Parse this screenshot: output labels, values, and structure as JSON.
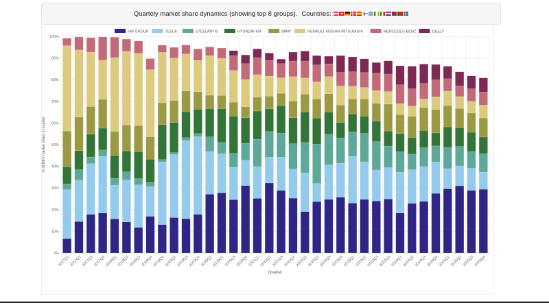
{
  "header": {
    "title": "Quartely market share dynamics (showing top 8 groups).",
    "countries_label": "Countries:",
    "country_flags": [
      "AT",
      "CH",
      "DE",
      "DK",
      "ES",
      "FI",
      "GB",
      "IE",
      "IT",
      "NL",
      "NO",
      "PT",
      "SE"
    ]
  },
  "chart_data": {
    "type": "bar",
    "stacked": true,
    "xlabel": "Quarter",
    "ylabel": "% of BEV market share in quarter",
    "ylim": [
      0,
      100
    ],
    "yticks": [
      "0%",
      "10%",
      "20%",
      "30%",
      "40%",
      "50%",
      "60%",
      "70%",
      "80%",
      "90%",
      "100%"
    ],
    "grid": true,
    "legend_position": "top",
    "categories": [
      "2017Q1",
      "2017Q2",
      "2017Q3",
      "2017Q4",
      "2018Q1",
      "2018Q2",
      "2018Q3",
      "2018Q4",
      "2019Q1",
      "2019Q2",
      "2019Q3",
      "2019Q4",
      "2020Q1",
      "2020Q2",
      "2020Q3",
      "2020Q4",
      "2021Q1",
      "2021Q2",
      "2021Q3",
      "2021Q4",
      "2022Q1",
      "2022Q2",
      "2022Q3",
      "2022Q4",
      "2023Q1",
      "2023Q2",
      "2023Q3",
      "2023Q4",
      "2024Q1",
      "2024Q2",
      "2024Q3",
      "2024Q4",
      "2025Q1",
      "2025Q2",
      "2025Q3",
      "2025Q4"
    ],
    "series": [
      {
        "name": "VW GROUP",
        "color": "#2e2585",
        "values": [
          6.6,
          14.5,
          17.8,
          18.4,
          15.7,
          14.3,
          11.8,
          16.9,
          13.1,
          16.3,
          15.8,
          17.8,
          27.1,
          27.7,
          24.6,
          31.1,
          25.2,
          32.3,
          28.9,
          25.3,
          19.1,
          23.7,
          24.7,
          25.7,
          23.0,
          24.7,
          24.0,
          24.9,
          18.4,
          22.9,
          23.8,
          27.5,
          29.6,
          31.0,
          28.9,
          29.4
        ]
      },
      {
        "name": "TESLA",
        "color": "#94caec",
        "values": [
          22.6,
          19.1,
          23.4,
          26.2,
          15.6,
          19.4,
          19.6,
          13.7,
          28.9,
          29.1,
          36.1,
          35.9,
          19.7,
          18.1,
          14.9,
          11.7,
          14.7,
          11.9,
          15.3,
          13.4,
          17.8,
          8.4,
          16.0,
          15.7,
          21.6,
          17.4,
          14.3,
          14.5,
          18.9,
          15.5,
          16.1,
          14.5,
          9.3,
          9.2,
          10.2,
          7.9
        ]
      },
      {
        "name": "STELLANTIS",
        "color": "#5da899",
        "values": [
          2.7,
          4.8,
          3.1,
          2.9,
          3.1,
          3.7,
          2.9,
          1.9,
          1.1,
          0.9,
          1.3,
          1.4,
          6.8,
          5.2,
          6.5,
          7.8,
          12.6,
          11.9,
          11.1,
          11.7,
          14.1,
          18.1,
          14.1,
          11.7,
          11.2,
          13.1,
          13.1,
          9.9,
          9.4,
          7.2,
          8.7,
          7.4,
          9.8,
          9.0,
          7.7,
          8.5
        ]
      },
      {
        "name": "HYUNDAI-KIA",
        "color": "#337538",
        "values": [
          7.8,
          8.8,
          10.5,
          10.1,
          10.6,
          9.7,
          12.4,
          10.8,
          16.1,
          13.9,
          12.0,
          11.2,
          13.0,
          15.6,
          17.2,
          11.8,
          13.0,
          10.4,
          12.7,
          12.0,
          14.1,
          12.1,
          10.2,
          7.1,
          8.4,
          7.9,
          9.4,
          7.0,
          8.4,
          7.7,
          7.9,
          6.0,
          9.5,
          8.6,
          8.9,
          7.7
        ]
      },
      {
        "name": "BMW",
        "color": "#9b9a42",
        "values": [
          16.6,
          15.5,
          12.8,
          13.3,
          11.1,
          11.9,
          12.1,
          10.3,
          10.1,
          10.2,
          9.6,
          8.1,
          6.2,
          6.1,
          6.4,
          5.1,
          6.4,
          5.9,
          5.7,
          7.7,
          8.2,
          8.8,
          8.5,
          8.1,
          6.9,
          8.0,
          8.3,
          12.4,
          8.7,
          9.8,
          10.6,
          10.8,
          9.8,
          8.9,
          8.9,
          8.8
        ]
      },
      {
        "name": "RENAULT-NISSAN-MITSUBISHI",
        "color": "#dccb7e",
        "values": [
          39.4,
          31.0,
          25.1,
          18.1,
          34.1,
          34.1,
          33.4,
          31.0,
          23.3,
          19.6,
          17.1,
          14.5,
          18.3,
          17.1,
          14.7,
          12.6,
          10.4,
          9.2,
          7.2,
          11.3,
          7.5,
          7.9,
          7.9,
          8.8,
          5.9,
          5.3,
          5.9,
          5.8,
          5.1,
          4.7,
          4.0,
          5.9,
          6.7,
          5.5,
          5.4,
          6.0
        ]
      },
      {
        "name": "MERCEDES-BENZ",
        "color": "#c26a77",
        "values": [
          3.4,
          6.0,
          6.7,
          10.7,
          9.4,
          5.6,
          5.6,
          5.1,
          3.3,
          4.9,
          4.1,
          5.3,
          4.0,
          4.8,
          6.8,
          7.3,
          7.9,
          7.3,
          6.5,
          7.2,
          7.7,
          7.8,
          5.9,
          6.3,
          6.7,
          6.9,
          8.0,
          8.1,
          8.7,
          8.0,
          7.2,
          7.8,
          5.7,
          4.9,
          5.8,
          6.0
        ]
      },
      {
        "name": "GEELY",
        "color": "#7e2954",
        "values": [
          0,
          0,
          0,
          0,
          0,
          0,
          0,
          0,
          0,
          0,
          0,
          0,
          0,
          0,
          2.3,
          4.0,
          4.0,
          3.4,
          2.1,
          4.1,
          4.7,
          4.3,
          3.5,
          7.7,
          6.8,
          6.3,
          4.9,
          6.1,
          8.8,
          10.4,
          8.9,
          7.1,
          5.8,
          6.5,
          5.9,
          6.5
        ]
      }
    ]
  }
}
